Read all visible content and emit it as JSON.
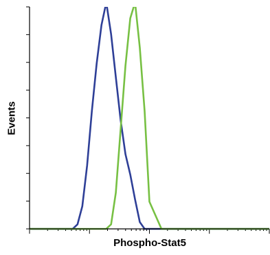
{
  "chart_data": {
    "type": "line",
    "title": "",
    "xlabel": "Phospho-Stat5",
    "ylabel": "Events",
    "x_scale": "log",
    "x_decades": 4,
    "y_tick_count": 8,
    "x_relative": [
      0.0,
      0.1,
      0.15,
      0.18,
      0.2,
      0.22,
      0.24,
      0.26,
      0.28,
      0.3,
      0.32,
      0.34,
      0.36,
      0.38,
      0.4,
      0.42,
      0.44,
      0.46,
      0.48,
      0.5,
      0.55,
      0.6,
      0.7,
      0.8,
      0.9,
      1.0
    ],
    "series": [
      {
        "color": "#2e3f97",
        "values": [
          0,
          0,
          0,
          0,
          2,
          10,
          28,
          52,
          73,
          90,
          100,
          86,
          67,
          48,
          33,
          24,
          13,
          3,
          0,
          0,
          0,
          0,
          0,
          0,
          0,
          0
        ]
      },
      {
        "color": "#77c043",
        "values": [
          0,
          0,
          0,
          0,
          0,
          0,
          0,
          0,
          0,
          0,
          0,
          2,
          16,
          44,
          72,
          93,
          100,
          80,
          52,
          12,
          0,
          0,
          0,
          0,
          0,
          0
        ]
      }
    ]
  }
}
